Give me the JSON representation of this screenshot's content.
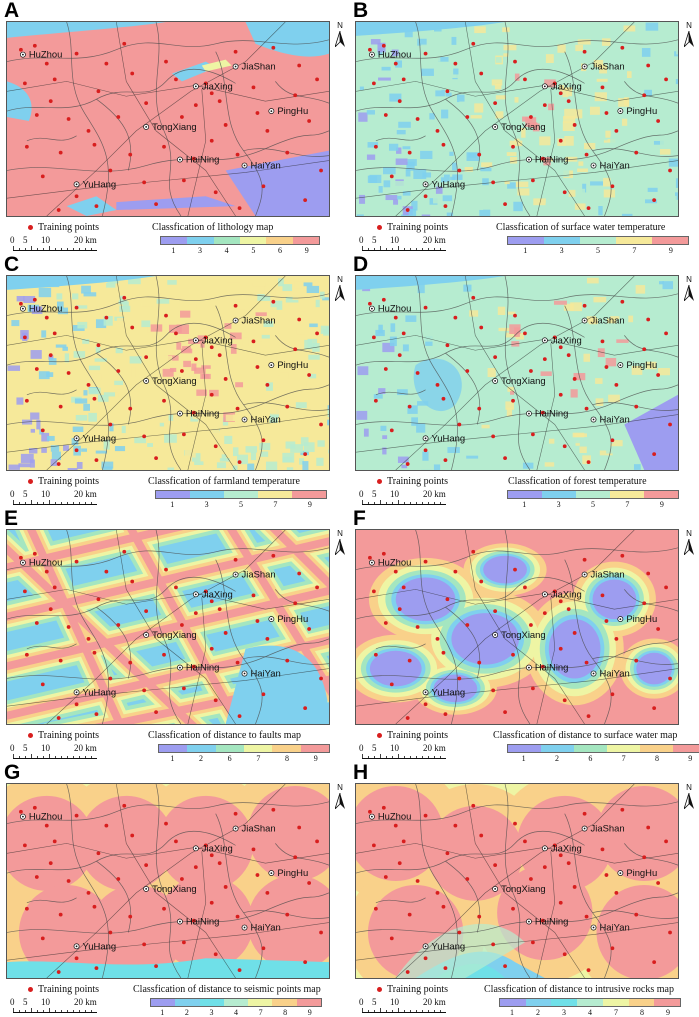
{
  "common": {
    "training_label": "Training points",
    "scale": [
      "0",
      "5",
      "10",
      "20 km"
    ],
    "north": "N",
    "point_color": "#d81e1e",
    "cities": [
      {
        "name": "HuZhou"
      },
      {
        "name": "JiaShan"
      },
      {
        "name": "JiaXing"
      },
      {
        "name": "PingHu"
      },
      {
        "name": "TongXiang"
      },
      {
        "name": "HaiNing"
      },
      {
        "name": "HaiYan"
      },
      {
        "name": "YuHang"
      }
    ]
  },
  "panels": [
    {
      "letter": "A",
      "legend_title": "Classfication of lithology map",
      "ticks": [
        "1",
        "3",
        "4",
        "5",
        "6",
        "9"
      ],
      "colors": [
        "#9d9df0",
        "#7fd0ee",
        "#a4e6c0",
        "#eef5a4",
        "#f9d18a",
        "#f39a9a"
      ],
      "theme": "lithology"
    },
    {
      "letter": "B",
      "legend_title": "Classfication of surface water temperature",
      "ticks": [
        "1",
        "3",
        "5",
        "7",
        "9"
      ],
      "colors": [
        "#9d9df0",
        "#7fd0ee",
        "#b6ecd0",
        "#f6e99a",
        "#f39a9a"
      ],
      "theme": "swt"
    },
    {
      "letter": "C",
      "legend_title": "Classfication of farmland temperature",
      "ticks": [
        "1",
        "3",
        "5",
        "7",
        "9"
      ],
      "colors": [
        "#9d9df0",
        "#7fd0ee",
        "#b6ecd0",
        "#f6e99a",
        "#f39a9a"
      ],
      "theme": "farm"
    },
    {
      "letter": "D",
      "legend_title": "Classfication of forest temperature",
      "ticks": [
        "1",
        "3",
        "5",
        "7",
        "9"
      ],
      "colors": [
        "#9d9df0",
        "#7fd0ee",
        "#b6ecd0",
        "#f6e99a",
        "#f39a9a"
      ],
      "theme": "forest"
    },
    {
      "letter": "E",
      "legend_title": "Classfication of distance to faults map",
      "ticks": [
        "1",
        "2",
        "6",
        "7",
        "8",
        "9"
      ],
      "colors": [
        "#9d9df0",
        "#7fd0ee",
        "#a4e6c0",
        "#eef5a4",
        "#f9d18a",
        "#f39a9a"
      ],
      "theme": "faults"
    },
    {
      "letter": "F",
      "legend_title": "Classfication of distance to surface water map",
      "ticks": [
        "1",
        "2",
        "6",
        "7",
        "8",
        "9"
      ],
      "colors": [
        "#9d9df0",
        "#7fd0ee",
        "#a4e6c0",
        "#eef5a4",
        "#f9d18a",
        "#f39a9a"
      ],
      "theme": "water"
    },
    {
      "letter": "G",
      "legend_title": "Classfication of distance to seismic points map",
      "ticks": [
        "1",
        "2",
        "3",
        "4",
        "7",
        "8",
        "9"
      ],
      "colors": [
        "#9d9df0",
        "#7fd0ee",
        "#6fe0e8",
        "#b6ecd0",
        "#eef5a4",
        "#f9d18a",
        "#f39a9a"
      ],
      "theme": "seismic"
    },
    {
      "letter": "H",
      "legend_title": "Classfication of distance to intrusive rocks map",
      "ticks": [
        "1",
        "2",
        "3",
        "4",
        "7",
        "8",
        "9"
      ],
      "colors": [
        "#9d9df0",
        "#7fd0ee",
        "#6fe0e8",
        "#b6ecd0",
        "#eef5a4",
        "#f9d18a",
        "#f39a9a"
      ],
      "theme": "intrusive"
    }
  ]
}
